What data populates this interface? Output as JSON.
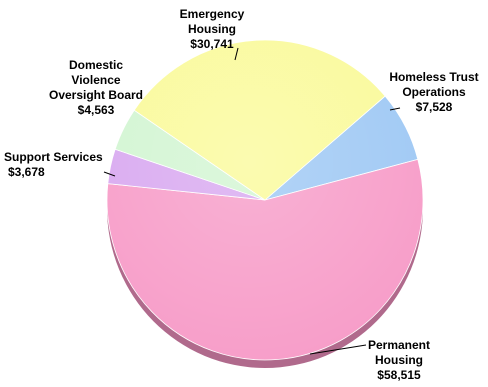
{
  "chart_data": {
    "type": "pie",
    "title": "",
    "slices": [
      {
        "name": "Homeless Trust Operations",
        "label_lines": [
          "Homeless Trust",
          "Operations"
        ],
        "value": 7528,
        "value_label": "$7,528",
        "color": "#9ec8f4"
      },
      {
        "name": "Permanent Housing",
        "label_lines": [
          "Permanent",
          "Housing"
        ],
        "value": 58515,
        "value_label": "$58,515",
        "color": "#f79cc8"
      },
      {
        "name": "Support Services",
        "label_lines": [
          "Support Services"
        ],
        "value": 3678,
        "value_label": "$3,678",
        "color": "#d8a8f0"
      },
      {
        "name": "Domestic Violence Oversight Board",
        "label_lines": [
          "Domestic",
          "Violence",
          "Oversight Board"
        ],
        "value": 4563,
        "value_label": "$4,563",
        "color": "#d2f5d2"
      },
      {
        "name": "Emergency Housing",
        "label_lines": [
          "Emergency",
          "Housing"
        ],
        "value": 30741,
        "value_label": "$30,741",
        "color": "#fafa9a"
      }
    ],
    "grid": false,
    "legend": "none"
  }
}
